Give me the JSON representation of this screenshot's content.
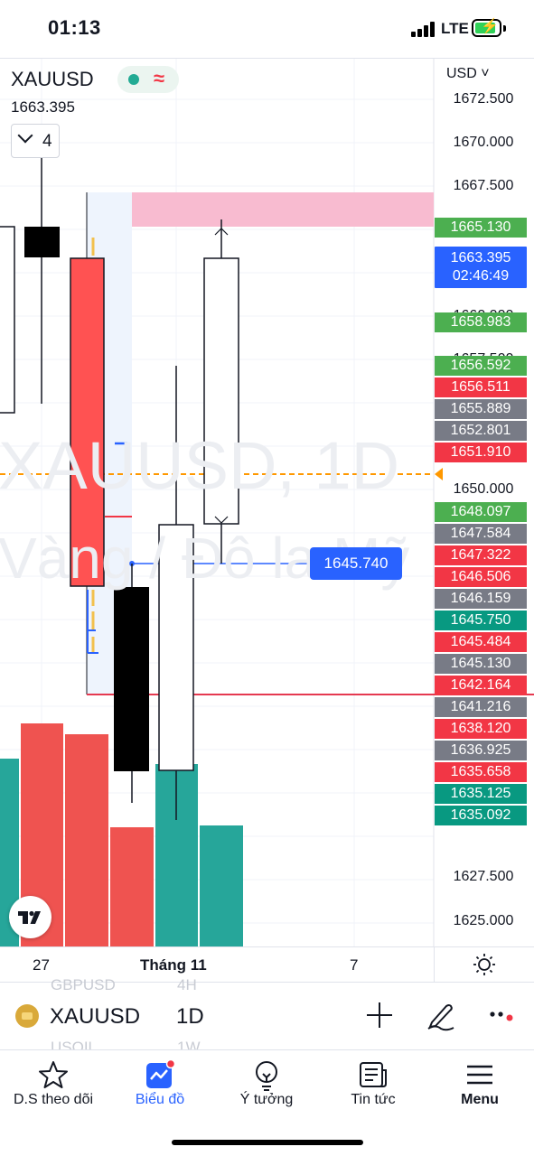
{
  "status_bar": {
    "time": "01:13",
    "network": "LTE"
  },
  "chart": {
    "symbol": "XAUUSD",
    "last_price": "1663.395",
    "indicator_count": "4",
    "currency": "USD",
    "watermark_line1": "XAUUSD, 1D",
    "watermark_line2": "Vàng / Đô la Mỹ",
    "axis_prices": [
      "1672.500",
      "1670.000",
      "1667.500",
      "1660.000",
      "1657.500",
      "1650.000",
      "1627.500",
      "1625.000"
    ],
    "price_labels": [
      {
        "value": "1665.130",
        "color": "#4caf50"
      },
      {
        "value": "1658.983",
        "color": "#4caf50"
      },
      {
        "value": "1656.592",
        "color": "#4caf50"
      },
      {
        "value": "1656.511",
        "color": "#f23645"
      },
      {
        "value": "1655.889",
        "color": "#787b86"
      },
      {
        "value": "1652.801",
        "color": "#787b86"
      },
      {
        "value": "1651.910",
        "color": "#f23645"
      },
      {
        "value": "1648.097",
        "color": "#4caf50"
      },
      {
        "value": "1647.584",
        "color": "#787b86"
      },
      {
        "value": "1647.322",
        "color": "#f23645"
      },
      {
        "value": "1646.506",
        "color": "#f23645"
      },
      {
        "value": "1646.159",
        "color": "#787b86"
      },
      {
        "value": "1645.750",
        "color": "#089981"
      },
      {
        "value": "1645.484",
        "color": "#f23645"
      },
      {
        "value": "1645.130",
        "color": "#787b86"
      },
      {
        "value": "1642.164",
        "color": "#f23645"
      },
      {
        "value": "1641.216",
        "color": "#787b86"
      },
      {
        "value": "1638.120",
        "color": "#f23645"
      },
      {
        "value": "1636.925",
        "color": "#787b86"
      },
      {
        "value": "1635.658",
        "color": "#f23645"
      },
      {
        "value": "1635.125",
        "color": "#089981"
      },
      {
        "value": "1635.092",
        "color": "#089981"
      }
    ],
    "current_price": "1663.395",
    "countdown": "02:46:49",
    "crosshair_price": "1645.740",
    "time_labels": [
      "27",
      "Tháng 11",
      "7"
    ]
  },
  "symbol_bar": {
    "ghost_symbol_1": "GBPUSD",
    "ghost_tf_1": "4H",
    "ghost_symbol_2": "USOIL",
    "ghost_tf_2": "1W",
    "symbol": "XAUUSD",
    "timeframe": "1D"
  },
  "bottom_nav": {
    "items": [
      {
        "label": "D.S theo dõi",
        "icon": "star-icon"
      },
      {
        "label": "Biểu đồ",
        "icon": "chart-icon"
      },
      {
        "label": "Ý tưởng",
        "icon": "lightbulb-icon"
      },
      {
        "label": "Tin tức",
        "icon": "news-icon"
      },
      {
        "label": "Menu",
        "icon": "menu-icon"
      }
    ]
  }
}
